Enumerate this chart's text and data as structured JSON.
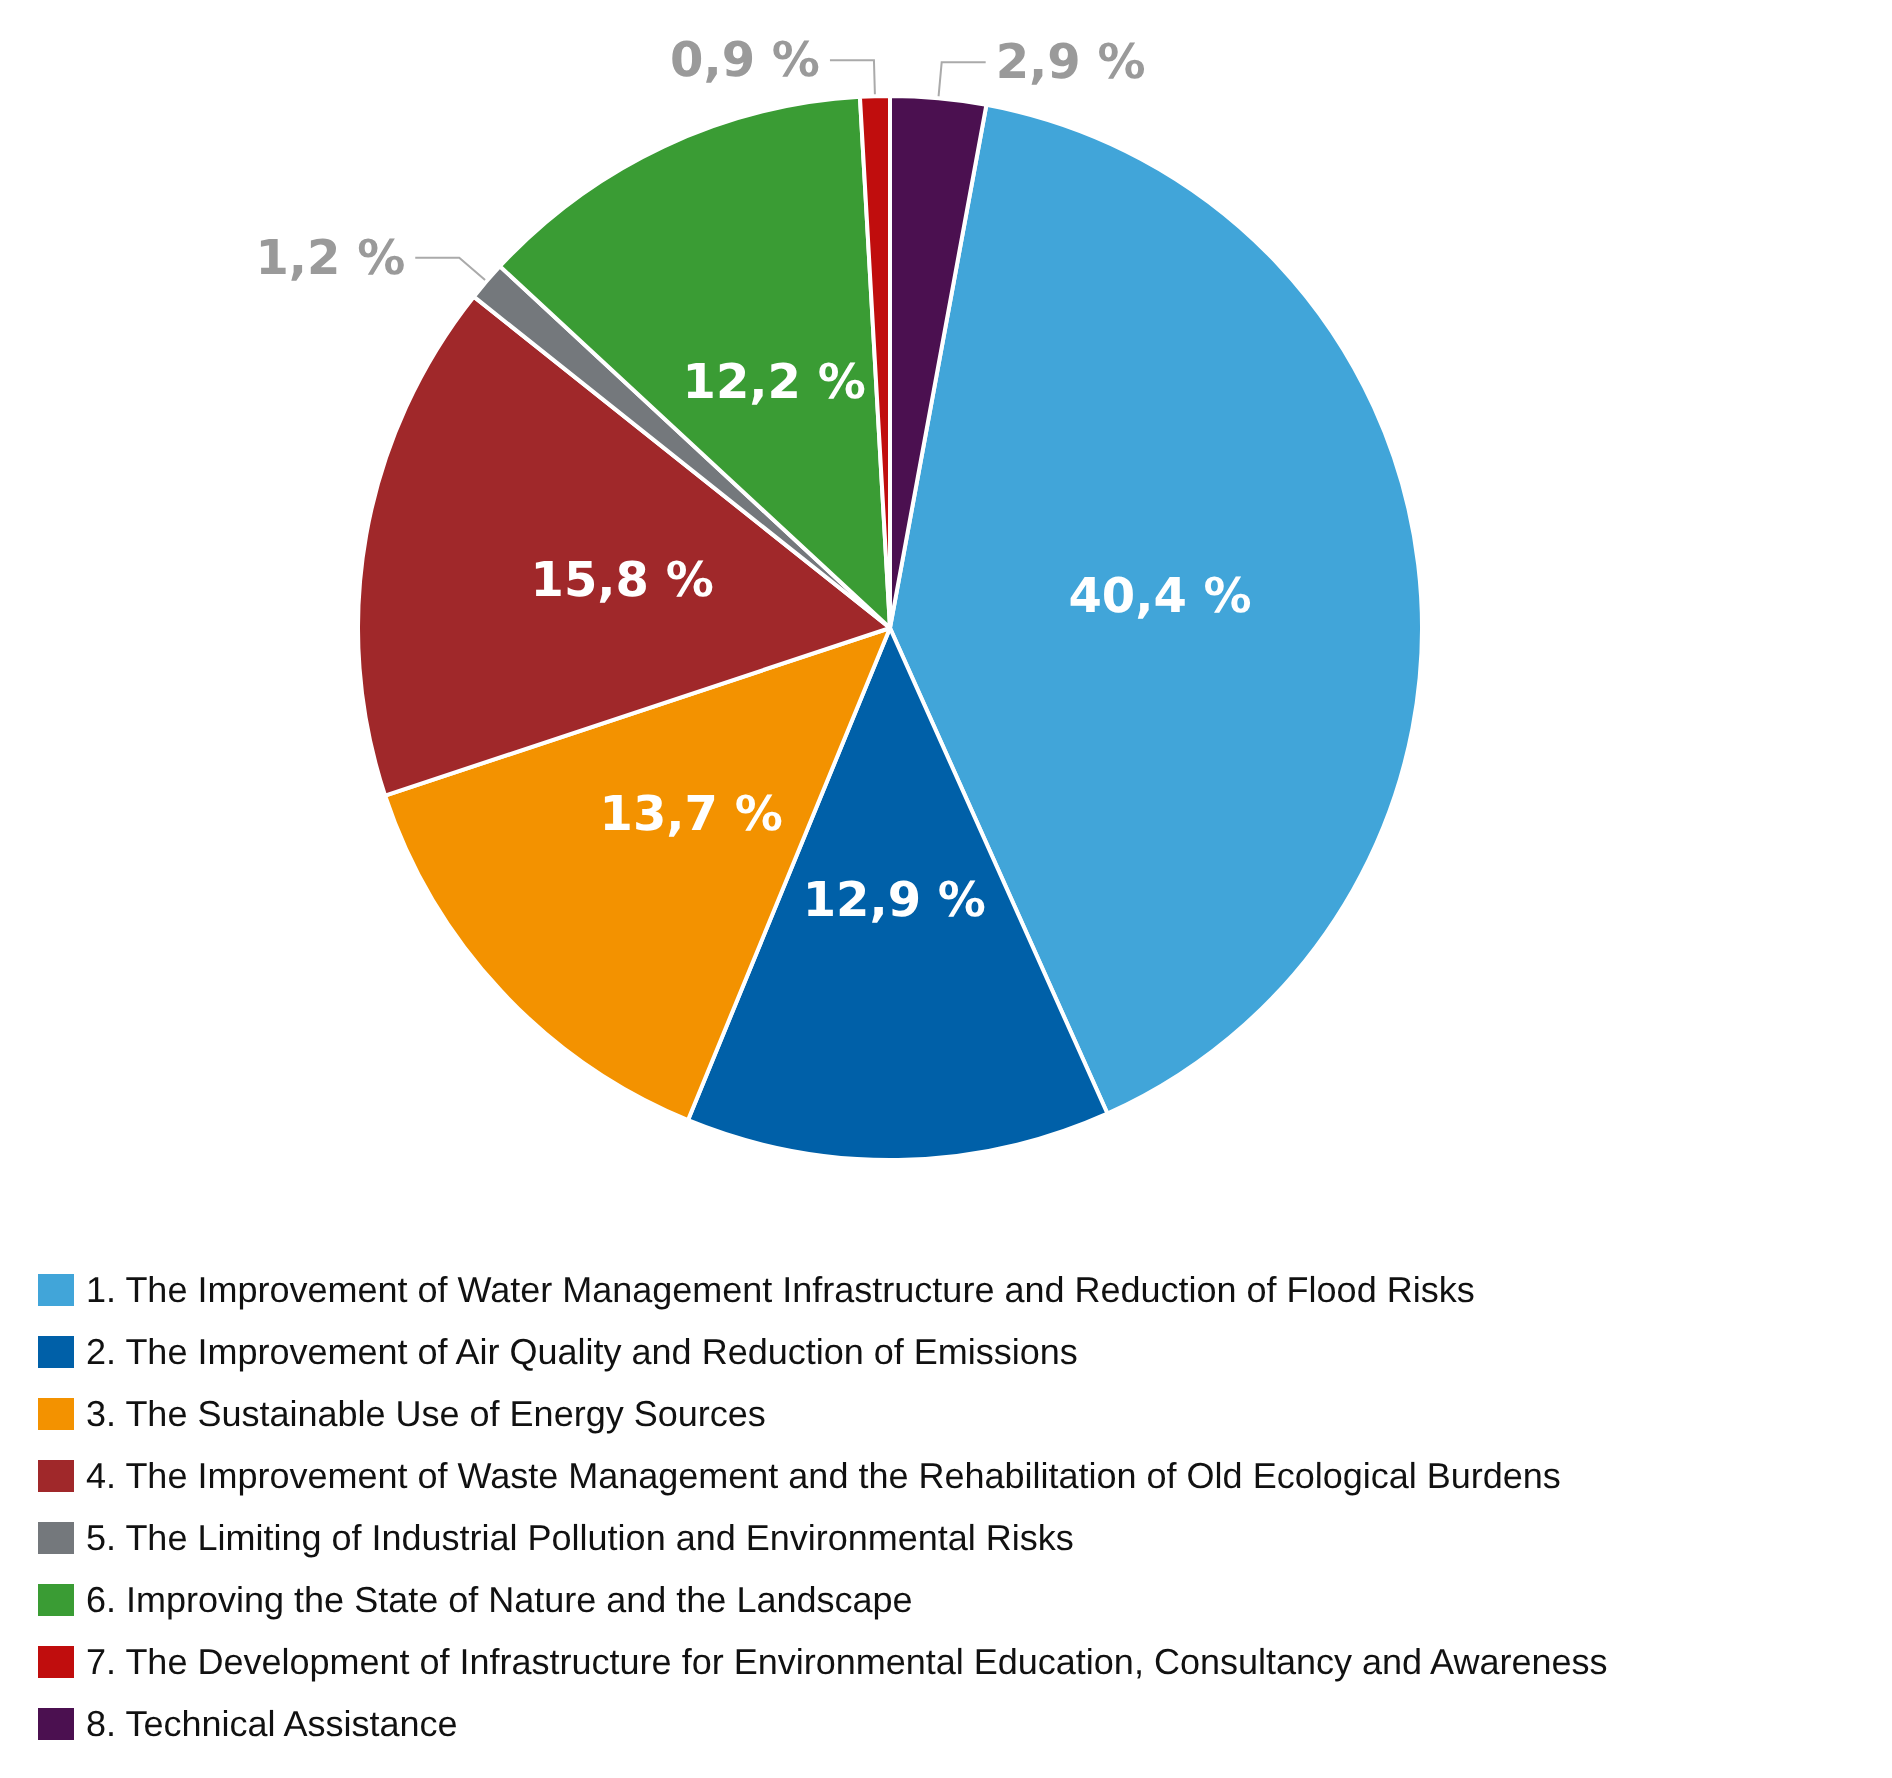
{
  "chart_data": {
    "type": "pie",
    "categories": [
      "1. The Improvement of Water Management Infrastructure and Reduction of Flood Risks",
      "2. The Improvement of Air Quality and Reduction of Emissions",
      "3. The Sustainable Use of Energy Sources",
      "4. The Improvement of Waste Management and the Rehabilitation of Old Ecological Burdens",
      "5. The Limiting of Industrial Pollution and Environmental Risks",
      "6. Improving the State of Nature and the Landscape",
      "7. The Development of Infrastructure for Environmental Education, Consultancy and Awareness",
      "8. Technical Assistance"
    ],
    "values": [
      40.4,
      12.9,
      13.7,
      15.8,
      1.2,
      12.2,
      0.9,
      2.9
    ],
    "value_labels": [
      "40,4 %",
      "12,9 %",
      "13,7 %",
      "15,8 %",
      "1,2 %",
      "12,2 %",
      "0,9 %",
      "2,9 %"
    ],
    "colors": [
      "#41a5d9",
      "#0060a8",
      "#f39200",
      "#a0282a",
      "#74787c",
      "#3a9c34",
      "#c00d0d",
      "#4b1050"
    ],
    "legend": "bottom"
  }
}
